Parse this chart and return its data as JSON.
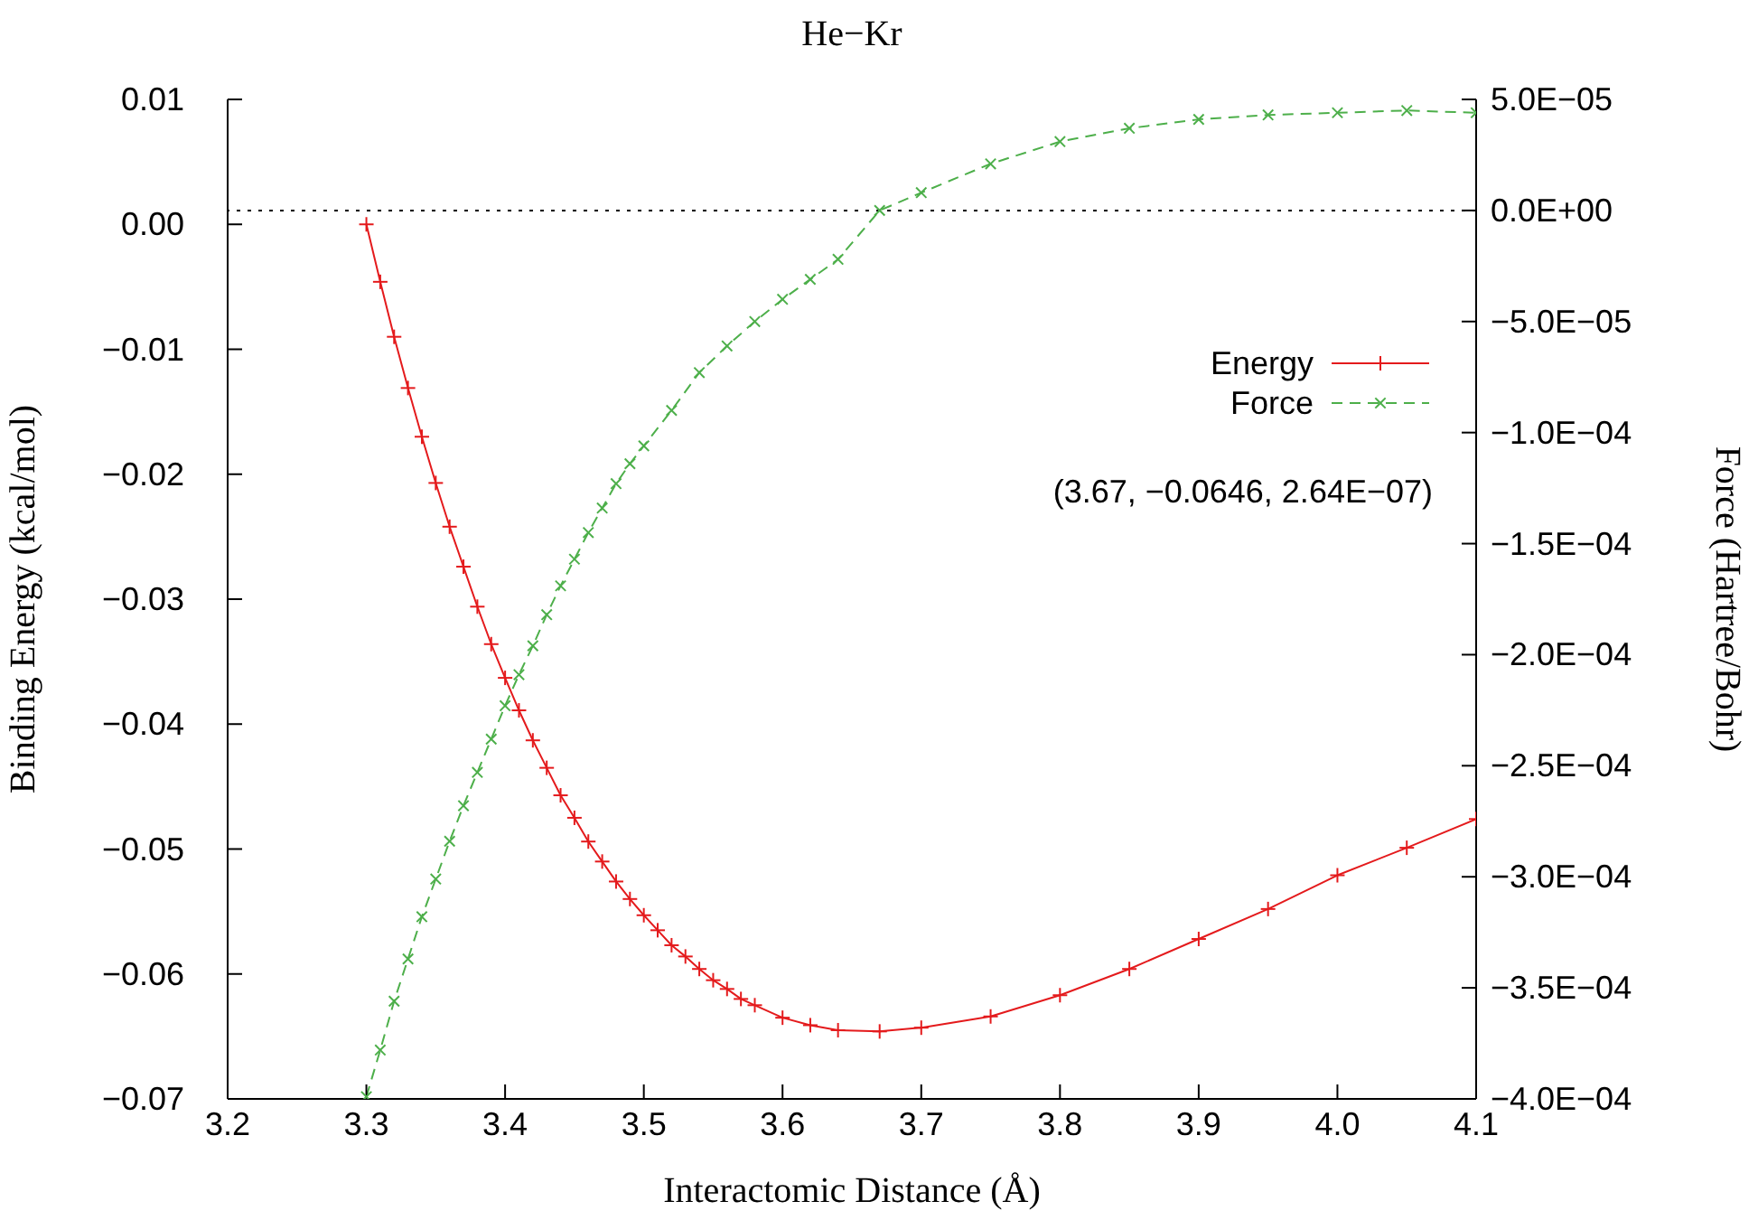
{
  "chart_data": {
    "type": "line",
    "title": "He−Kr",
    "xlabel": "Interactomic Distance (Å)",
    "ylabel": "Binding Energy (kcal/mol)",
    "y2label": "Force (Hartree/Bohr)",
    "xlim": [
      3.2,
      4.1
    ],
    "xticks": [
      3.2,
      3.3,
      3.4,
      3.5,
      3.6,
      3.7,
      3.8,
      3.9,
      {
        "value": 4.0,
        "label": "4.0"
      },
      4.1
    ],
    "ylim": [
      -0.07,
      0.01
    ],
    "yticks": [
      {
        "value": -0.07,
        "label": "−0.07"
      },
      {
        "value": -0.06,
        "label": "−0.06"
      },
      {
        "value": -0.05,
        "label": "−0.05"
      },
      {
        "value": -0.04,
        "label": "−0.04"
      },
      {
        "value": -0.03,
        "label": "−0.03"
      },
      {
        "value": -0.02,
        "label": "−0.02"
      },
      {
        "value": -0.01,
        "label": "−0.01"
      },
      {
        "value": 0,
        "label": "0.00"
      },
      0.01
    ],
    "y2lim": [
      -0.0004,
      5e-05
    ],
    "y2ticks": [
      {
        "value": -0.0004,
        "label": "−4.0E−04"
      },
      {
        "value": -0.00035,
        "label": "−3.5E−04"
      },
      {
        "value": -0.0003,
        "label": "−3.0E−04"
      },
      {
        "value": -0.00025,
        "label": "−2.5E−04"
      },
      {
        "value": -0.0002,
        "label": "−2.0E−04"
      },
      {
        "value": -0.00015,
        "label": "−1.5E−04"
      },
      {
        "value": -0.0001,
        "label": "−1.0E−04"
      },
      {
        "value": -5e-05,
        "label": "−5.0E−05"
      },
      {
        "value": 0,
        "label": "0.0E+00"
      },
      {
        "value": 5e-05,
        "label": "5.0E−05"
      }
    ],
    "legend": "right",
    "ref_lines": [
      {
        "axis": "y2",
        "value": 0,
        "color": "#000000",
        "line_style": "dotted"
      }
    ],
    "annotations": [
      "(3.67, −0.0646, 2.64E−07)"
    ],
    "series": [
      {
        "name": "Energy",
        "color": "#e41a1c",
        "marker": "cross",
        "line_style": "solid",
        "x": [
          3.3,
          3.31,
          3.32,
          3.33,
          3.34,
          3.35,
          3.36,
          3.37,
          3.38,
          3.39,
          3.4,
          3.41,
          3.42,
          3.43,
          3.44,
          3.45,
          3.46,
          3.47,
          3.48,
          3.49,
          3.5,
          3.51,
          3.52,
          3.53,
          3.54,
          3.55,
          3.56,
          3.57,
          3.58,
          3.6,
          3.62,
          3.64,
          3.67,
          3.7,
          3.75,
          3.8,
          3.85,
          3.9,
          3.95,
          4.0,
          4.05,
          4.1
        ],
        "values": [
          0.0,
          -0.0046,
          -0.009,
          -0.0131,
          -0.017,
          -0.0207,
          -0.0242,
          -0.0274,
          -0.0306,
          -0.0336,
          -0.0363,
          -0.0389,
          -0.0413,
          -0.0435,
          -0.0457,
          -0.0475,
          -0.0494,
          -0.051,
          -0.0526,
          -0.054,
          -0.0553,
          -0.0565,
          -0.0577,
          -0.0586,
          -0.0596,
          -0.0605,
          -0.0612,
          -0.062,
          -0.0625,
          -0.0635,
          -0.0641,
          -0.0645,
          -0.0646,
          -0.0643,
          -0.0634,
          -0.0617,
          -0.0596,
          -0.0572,
          -0.0548,
          -0.0521,
          -0.0499,
          -0.0476
        ]
      },
      {
        "name": "Force",
        "color": "#4daf4a",
        "marker": "cross",
        "line_style": "dashed",
        "axis": "y2",
        "x": [
          3.3,
          3.31,
          3.32,
          3.33,
          3.34,
          3.35,
          3.36,
          3.37,
          3.38,
          3.39,
          3.4,
          3.41,
          3.42,
          3.43,
          3.44,
          3.45,
          3.46,
          3.47,
          3.48,
          3.49,
          3.5,
          3.52,
          3.54,
          3.56,
          3.58,
          3.6,
          3.62,
          3.64,
          3.67,
          3.7,
          3.75,
          3.8,
          3.85,
          3.9,
          3.95,
          4.0,
          4.05,
          4.1
        ],
        "values": [
          -0.000399,
          -0.000378,
          -0.000356,
          -0.000337,
          -0.000318,
          -0.000301,
          -0.000284,
          -0.000268,
          -0.000253,
          -0.000238,
          -0.000223,
          -0.000209,
          -0.000196,
          -0.000182,
          -0.000169,
          -0.000157,
          -0.000145,
          -0.000134,
          -0.000123,
          -0.000114,
          -0.000106,
          -9e-05,
          -7.3e-05,
          -6.1e-05,
          -5e-05,
          -4e-05,
          -3.1e-05,
          -2.2e-05,
          0.0,
          8e-06,
          2.1e-05,
          3.1e-05,
          3.7e-05,
          4.1e-05,
          4.3e-05,
          4.4e-05,
          4.5e-05,
          4.4e-05
        ]
      }
    ]
  }
}
